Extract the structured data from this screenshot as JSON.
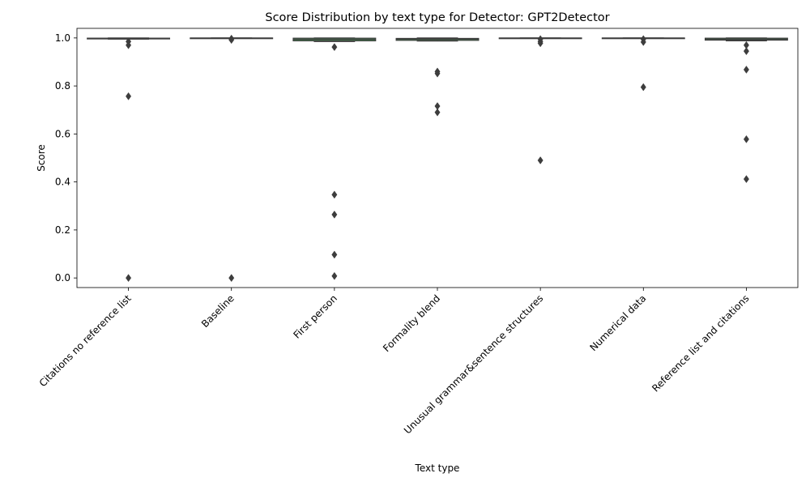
{
  "chart_data": {
    "type": "box",
    "title": "Score Distribution by text type for Detector: GPT2Detector",
    "xlabel": "Text type",
    "ylabel": "Score",
    "ylim": [
      -0.04,
      1.04
    ],
    "yticks": [
      0.0,
      0.2,
      0.4,
      0.6,
      0.8,
      1.0
    ],
    "ytick_labels": [
      "0.0",
      "0.2",
      "0.4",
      "0.6",
      "0.8",
      "1.0"
    ],
    "grid": false,
    "box_color": "#4c9c58",
    "line_color": "#3d3d3d",
    "categories": [
      "Citations no reference list",
      "Baseline",
      "First person",
      "Formality blend",
      "Unusual grammar&sentence structures",
      "Numerical data",
      "Reference list and citations"
    ],
    "boxes": [
      {
        "whislo": 0.995,
        "q1": 0.996,
        "med": 0.999,
        "q3": 0.999,
        "whishi": 1.0,
        "fliers": [
          0.985,
          0.97,
          0.757,
          0.0
        ]
      },
      {
        "whislo": 0.998,
        "q1": 0.999,
        "med": 0.9995,
        "q3": 0.9998,
        "whishi": 1.0,
        "fliers": [
          0.997,
          0.992,
          0.0
        ]
      },
      {
        "whislo": 0.985,
        "q1": 0.988,
        "med": 0.994,
        "q3": 0.999,
        "whishi": 1.0,
        "fliers": [
          0.962,
          0.347,
          0.264,
          0.097,
          0.008
        ]
      },
      {
        "whislo": 0.987,
        "q1": 0.99,
        "med": 0.995,
        "q3": 0.998,
        "whishi": 1.0,
        "fliers": [
          0.86,
          0.852,
          0.716,
          0.69
        ]
      },
      {
        "whislo": 0.998,
        "q1": 0.999,
        "med": 0.9995,
        "q3": 0.9998,
        "whishi": 1.0,
        "fliers": [
          0.995,
          0.985,
          0.978,
          0.49
        ]
      },
      {
        "whislo": 0.998,
        "q1": 0.999,
        "med": 0.9995,
        "q3": 0.9998,
        "whishi": 1.0,
        "fliers": [
          0.995,
          0.983,
          0.795
        ]
      },
      {
        "whislo": 0.988,
        "q1": 0.991,
        "med": 0.995,
        "q3": 0.999,
        "whishi": 1.0,
        "fliers": [
          0.97,
          0.945,
          0.868,
          0.578,
          0.412
        ]
      }
    ]
  }
}
